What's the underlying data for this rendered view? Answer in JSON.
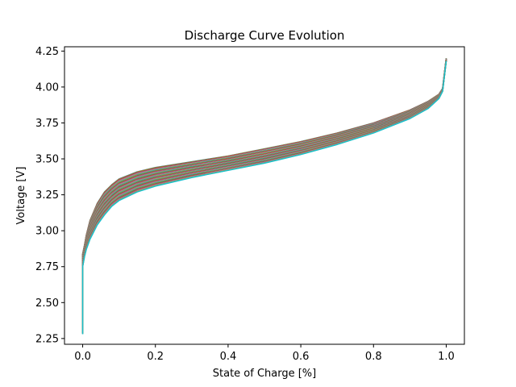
{
  "chart_data": {
    "type": "line",
    "title": "Discharge Curve Evolution",
    "xlabel": "State of Charge [%]",
    "ylabel": "Voltage [V]",
    "xlim": [
      -0.05,
      1.05
    ],
    "ylim": [
      2.21,
      4.28
    ],
    "grid": false,
    "legend": "none",
    "x_ticks": [
      0.0,
      0.2,
      0.4,
      0.6,
      0.8,
      1.0
    ],
    "x_tick_labels": [
      "0.0",
      "0.2",
      "0.4",
      "0.6",
      "0.8",
      "1.0"
    ],
    "y_ticks": [
      2.25,
      2.5,
      2.75,
      3.0,
      3.25,
      3.5,
      3.75,
      4.0,
      4.25
    ],
    "y_tick_labels": [
      "2.25",
      "2.50",
      "2.75",
      "3.00",
      "3.25",
      "3.50",
      "3.75",
      "4.00",
      "4.25"
    ],
    "series_count": 60,
    "series_colors": [
      "#1f77b4",
      "#ff7f0e",
      "#2ca02c",
      "#d62728",
      "#9467bd",
      "#8c564b",
      "#e377c2",
      "#7f7f7f",
      "#bcbd22",
      "#17becf"
    ],
    "envelope": {
      "x": [
        0.0,
        0.0,
        0.005,
        0.01,
        0.02,
        0.04,
        0.06,
        0.08,
        0.1,
        0.15,
        0.2,
        0.3,
        0.4,
        0.5,
        0.6,
        0.7,
        0.8,
        0.9,
        0.95,
        0.98,
        0.99,
        1.0
      ],
      "lower": [
        2.28,
        2.75,
        2.82,
        2.87,
        2.94,
        3.04,
        3.11,
        3.17,
        3.21,
        3.27,
        3.31,
        3.37,
        3.42,
        3.47,
        3.53,
        3.6,
        3.68,
        3.78,
        3.85,
        3.92,
        3.97,
        4.18
      ],
      "upper": [
        2.36,
        2.84,
        2.9,
        2.97,
        3.07,
        3.19,
        3.27,
        3.32,
        3.36,
        3.41,
        3.44,
        3.48,
        3.52,
        3.57,
        3.62,
        3.68,
        3.75,
        3.84,
        3.9,
        3.95,
        3.99,
        4.2
      ]
    }
  }
}
